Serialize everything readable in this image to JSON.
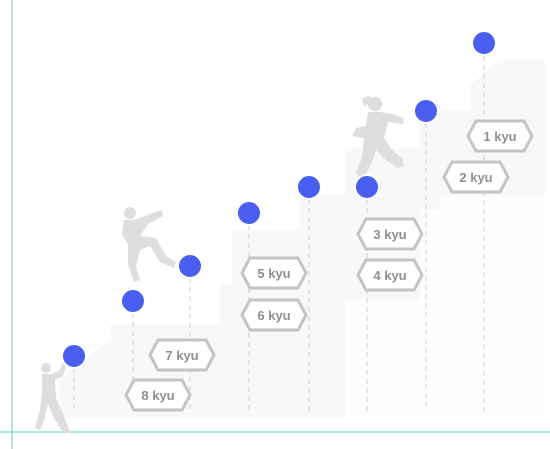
{
  "chart_data": {
    "type": "diagram",
    "title": "",
    "description_of_marks": "staircase of kyu rank milestones",
    "milestones": [
      {
        "rank": "8 kyu",
        "step": 1
      },
      {
        "rank": "7 kyu",
        "step": 2
      },
      {
        "rank": "6 kyu",
        "step": 3
      },
      {
        "rank": "5 kyu",
        "step": 4
      },
      {
        "rank": "4 kyu",
        "step": 5
      },
      {
        "rank": "3 kyu",
        "step": 6
      },
      {
        "rank": "2 kyu",
        "step": 7
      },
      {
        "rank": "1 kyu",
        "step": 8
      }
    ]
  },
  "labels": {
    "kyu8": "8 kyu",
    "kyu7": "7 kyu",
    "kyu6": "6 kyu",
    "kyu5": "5 kyu",
    "kyu4": "4 kyu",
    "kyu3": "3 kyu",
    "kyu2": "2 kyu",
    "kyu1": "1 kyu"
  },
  "colors": {
    "dot": "#4a5ff0",
    "guide_line": "#5ad6b4",
    "badge_stroke": "#c4c4c4",
    "badge_text": "#8f8f8f",
    "background_shape": "#f8f8f8",
    "climber": "#dedede",
    "dashed_line": "#c9cbe8"
  }
}
